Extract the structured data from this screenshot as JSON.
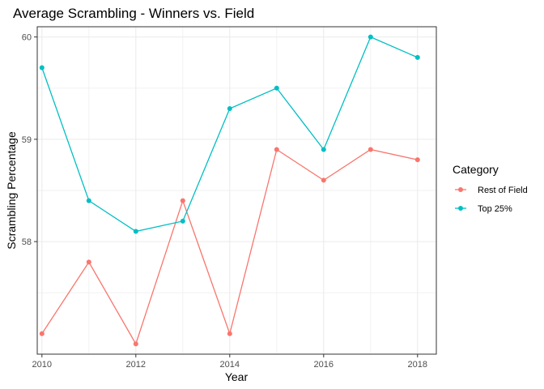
{
  "chart_data": {
    "type": "line",
    "title": "Average Scrambling - Winners vs. Field",
    "xlabel": "Year",
    "ylabel": "Scrambling Percentage",
    "x_ticks": [
      "2010",
      "2012",
      "2014",
      "2016",
      "2018"
    ],
    "y_ticks": [
      "58",
      "59",
      "60"
    ],
    "xlim": [
      2009.9,
      2018.4
    ],
    "ylim": [
      56.9,
      60.1
    ],
    "grid": true,
    "legend": {
      "title": "Category",
      "position": "right"
    },
    "x": [
      2010,
      2011,
      2012,
      2013,
      2014,
      2015,
      2016,
      2017,
      2018
    ],
    "series": [
      {
        "name": "Rest of Field",
        "color": "#f8766d",
        "values": [
          57.1,
          57.8,
          57.0,
          58.4,
          57.1,
          58.9,
          58.6,
          58.9,
          58.8
        ]
      },
      {
        "name": "Top 25%",
        "color": "#00bfc4",
        "values": [
          59.7,
          58.4,
          58.1,
          58.2,
          59.3,
          59.5,
          58.9,
          60.0,
          59.8
        ]
      }
    ]
  }
}
